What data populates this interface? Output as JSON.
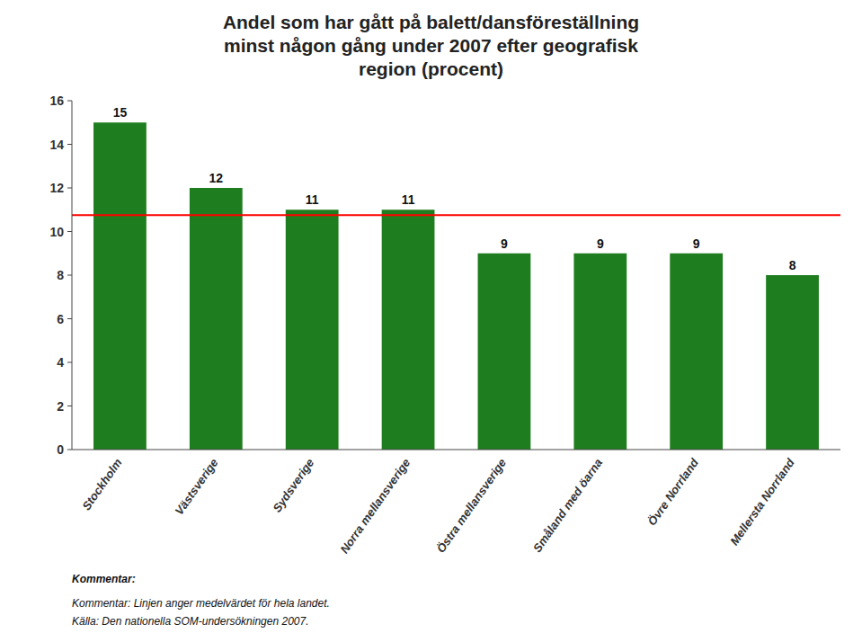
{
  "chart_data": {
    "type": "bar",
    "title": "Andel som har gått på balett/dansföreställning\nminst någon gång under 2007 efter geografisk\nregion (procent)",
    "categories": [
      "Stockholm",
      "Västsverige",
      "Sydsverige",
      "Norra mellansverige",
      "Östra mellansverige",
      "Småland med öarna",
      "Övre Norrland",
      "Mellersta Norrland"
    ],
    "values": [
      15,
      12,
      11,
      11,
      9,
      9,
      9,
      8
    ],
    "color": "#1e7d1e",
    "reference_line": {
      "value": 10.75,
      "color": "#ff0000"
    },
    "ylim": [
      0,
      16
    ],
    "yticks": [
      0,
      2,
      4,
      6,
      8,
      10,
      12,
      14,
      16
    ],
    "grid": false,
    "data_labels": true,
    "annotations": [
      "Kommentar:"
    ],
    "notes": [
      "Kommentar: Linjen anger medelvärdet för hela landet.",
      "Källa: Den nationella SOM-undersökningen 2007."
    ]
  }
}
